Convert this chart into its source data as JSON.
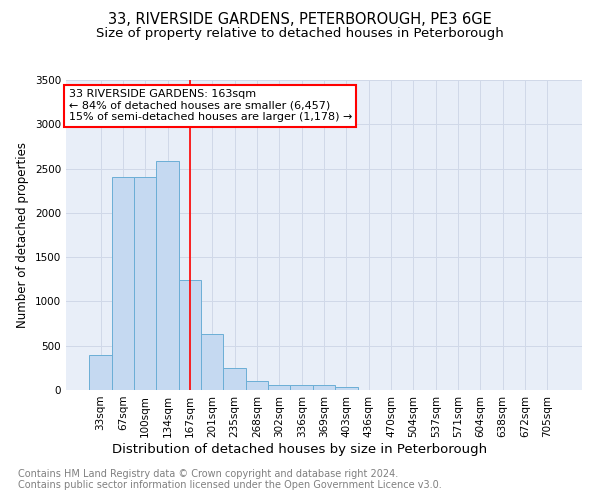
{
  "title": "33, RIVERSIDE GARDENS, PETERBOROUGH, PE3 6GE",
  "subtitle": "Size of property relative to detached houses in Peterborough",
  "xlabel": "Distribution of detached houses by size in Peterborough",
  "ylabel": "Number of detached properties",
  "footnote1": "Contains HM Land Registry data © Crown copyright and database right 2024.",
  "footnote2": "Contains public sector information licensed under the Open Government Licence v3.0.",
  "categories": [
    "33sqm",
    "67sqm",
    "100sqm",
    "134sqm",
    "167sqm",
    "201sqm",
    "235sqm",
    "268sqm",
    "302sqm",
    "336sqm",
    "369sqm",
    "403sqm",
    "436sqm",
    "470sqm",
    "504sqm",
    "537sqm",
    "571sqm",
    "604sqm",
    "638sqm",
    "672sqm",
    "705sqm"
  ],
  "values": [
    390,
    2400,
    2400,
    2590,
    1240,
    635,
    245,
    100,
    58,
    55,
    55,
    38,
    0,
    0,
    0,
    0,
    0,
    0,
    0,
    0,
    0
  ],
  "bar_color": "#c5d9f1",
  "bar_edge_color": "#6baed6",
  "grid_color": "#d0d8e8",
  "bg_color": "#e8eef8",
  "annotation_box_text": "33 RIVERSIDE GARDENS: 163sqm\n← 84% of detached houses are smaller (6,457)\n15% of semi-detached houses are larger (1,178) →",
  "annotation_box_color": "white",
  "annotation_box_edge_color": "red",
  "vline_x": 4.0,
  "vline_color": "red",
  "ylim": [
    0,
    3500
  ],
  "yticks": [
    0,
    500,
    1000,
    1500,
    2000,
    2500,
    3000,
    3500
  ],
  "title_fontsize": 10.5,
  "subtitle_fontsize": 9.5,
  "xlabel_fontsize": 9.5,
  "ylabel_fontsize": 8.5,
  "tick_fontsize": 7.5,
  "annotation_fontsize": 8,
  "footnote_fontsize": 7
}
